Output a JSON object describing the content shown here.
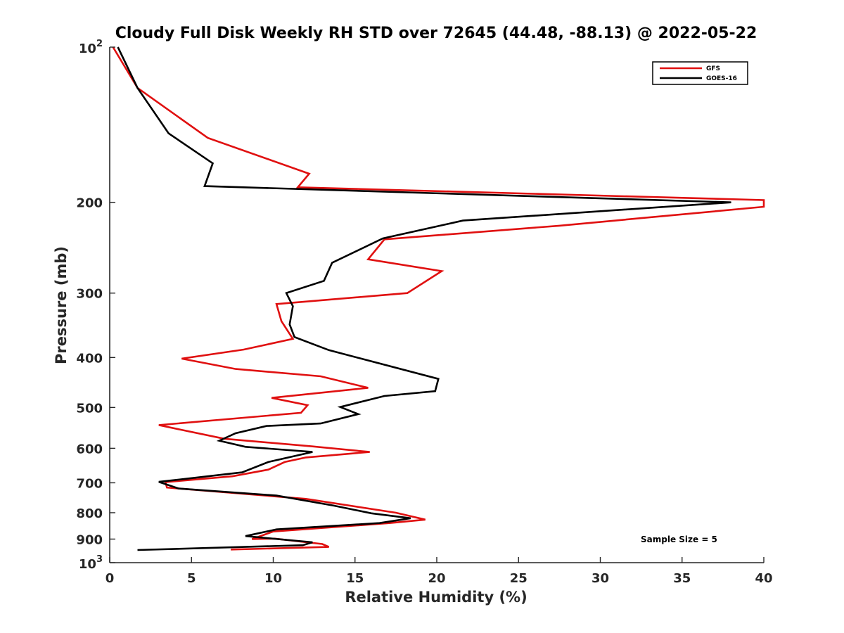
{
  "chart_data": {
    "type": "line",
    "title": "Cloudy Full Disk Weekly RH STD over 72645 (44.48, -88.13) @ 2022-05-22",
    "xlabel": "Relative Humidity (%)",
    "ylabel": "Pressure (mb)",
    "xlim": [
      0,
      40
    ],
    "ylim": [
      100,
      1000
    ],
    "y_scale": "log",
    "y_reversed": true,
    "x_ticks": [
      "0",
      "5",
      "10",
      "15",
      "20",
      "25",
      "30",
      "35",
      "40"
    ],
    "y_ticks": [
      {
        "value": 100,
        "base": "10",
        "exp": "2"
      },
      {
        "value": 200,
        "label": "200"
      },
      {
        "value": 300,
        "label": "300"
      },
      {
        "value": 400,
        "label": "400"
      },
      {
        "value": 500,
        "label": "500"
      },
      {
        "value": 600,
        "label": "600"
      },
      {
        "value": 700,
        "label": "700"
      },
      {
        "value": 800,
        "label": "800"
      },
      {
        "value": 900,
        "label": "900"
      },
      {
        "value": 1000,
        "base": "10",
        "exp": "3"
      }
    ],
    "legend_position": "top-right",
    "annotation": "Sample Size = 5",
    "series": [
      {
        "name": "GFS",
        "color": "#e01010",
        "x": [
          0.2,
          1.7,
          6.0,
          12.2,
          11.5,
          40.0,
          40.0,
          27.5,
          16.8,
          15.8,
          20.3,
          18.2,
          10.2,
          10.5,
          11.2,
          8.2,
          4.4,
          7.7,
          12.9,
          15.8,
          9.9,
          12.1,
          11.7,
          3.0,
          7.0,
          12.4,
          15.9,
          12.0,
          10.7,
          9.7,
          7.5,
          3.4,
          3.5,
          12.0,
          17.5,
          19.3,
          17.1,
          10.0,
          8.7,
          10.1,
          13.0,
          13.4,
          7.4
        ],
        "y": [
          100,
          120,
          150,
          176,
          187,
          198,
          204,
          222,
          236,
          258,
          272,
          300,
          315,
          340,
          368,
          386,
          402,
          421,
          435,
          458,
          479,
          495,
          512,
          541,
          575,
          595,
          610,
          625,
          638,
          660,
          680,
          698,
          715,
          752,
          800,
          825,
          838,
          870,
          900,
          898,
          920,
          932,
          943
        ]
      },
      {
        "name": "GOES-16",
        "color": "#000000",
        "x": [
          0.5,
          1.7,
          3.6,
          6.3,
          5.8,
          38.0,
          21.6,
          16.7,
          13.6,
          13.1,
          10.8,
          11.2,
          11.0,
          11.3,
          13.4,
          20.1,
          19.9,
          16.8,
          14.1,
          15.2,
          12.9,
          9.6,
          7.7,
          6.7,
          8.3,
          12.4,
          9.7,
          8.1,
          3.0,
          4.2,
          10.2,
          13.7,
          16.0,
          18.4,
          16.5,
          10.2,
          8.3,
          12.4,
          11.8,
          1.7
        ],
        "y": [
          100,
          120,
          147,
          168,
          186,
          200,
          217,
          235,
          262,
          284,
          300,
          318,
          345,
          365,
          387,
          440,
          465,
          475,
          499,
          515,
          537,
          543,
          561,
          580,
          596,
          610,
          638,
          668,
          697,
          718,
          741,
          775,
          802,
          820,
          838,
          862,
          888,
          913,
          925,
          945
        ]
      }
    ]
  }
}
